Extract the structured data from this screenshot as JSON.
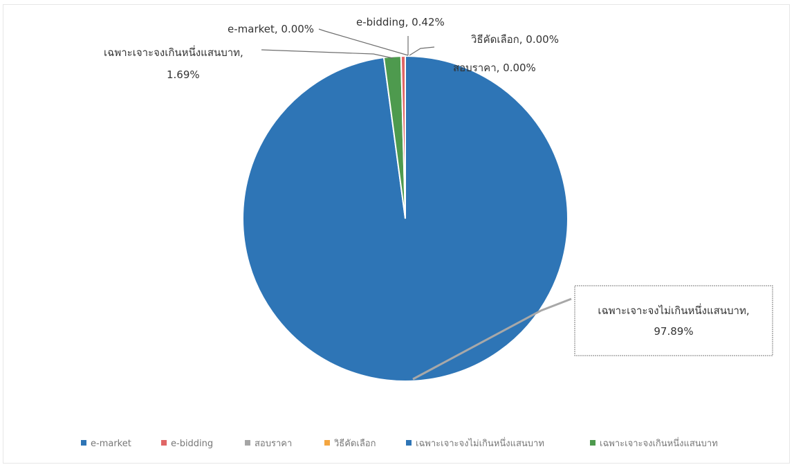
{
  "chart_data": {
    "type": "pie",
    "title": "",
    "series": [
      {
        "values": [
          0.0,
          0.42,
          0.0,
          0.0,
          97.89,
          1.69
        ]
      }
    ],
    "categories": [
      "e-market",
      "e-bidding",
      "สอบราคา",
      "วิธีคัดเลือก",
      "เฉพาะเจาะจงไม่เกินหนึ่งแสนบาท",
      "เฉพาะเจาะจงเกินหนึ่งแสนบาท"
    ],
    "colors": [
      "#2e75b6",
      "#e06666",
      "#a5a5a5",
      "#f4a641",
      "#2e75b6",
      "#4e9a4e"
    ],
    "data_labels": [
      "e-market, 0.00%",
      "e-bidding, 0.42%",
      "สอบราคา, 0.00%",
      "วิธีคัดเลือก, 0.00%",
      "เฉพาะเจาะจงไม่เกินหนึ่งแสนบาท,",
      "97.89%",
      "เฉพาะเจาะจงเกินหนึ่งแสนบาท,",
      "1.69%"
    ],
    "legend_position": "bottom"
  }
}
